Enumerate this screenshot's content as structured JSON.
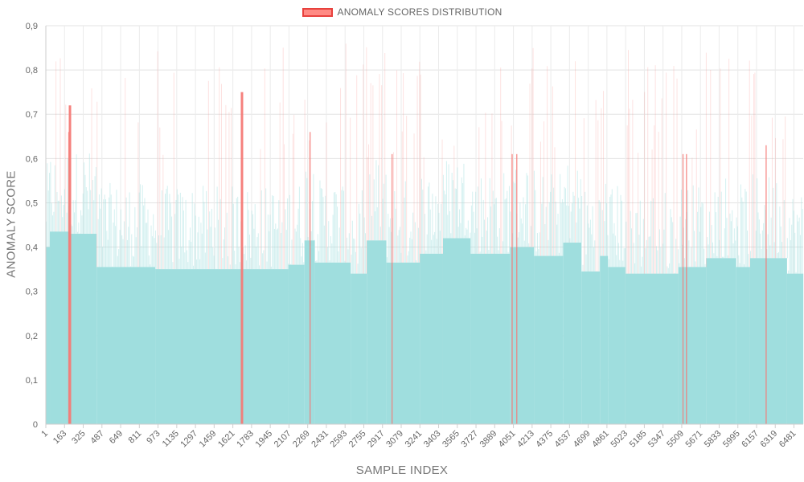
{
  "chart_data": {
    "type": "bar",
    "legend": {
      "label": "ANOMALY SCORES DISTRIBUTION",
      "position": "top-center"
    },
    "xlabel": "SAMPLE INDEX",
    "ylabel": "ANOMALY SCORE",
    "ylim": [
      0,
      0.9
    ],
    "y_ticks": [
      "0",
      "0,1",
      "0,2",
      "0,3",
      "0,4",
      "0,5",
      "0,6",
      "0,7",
      "0,8",
      "0,9"
    ],
    "x_ticks": [
      "1",
      "163",
      "325",
      "487",
      "649",
      "811",
      "973",
      "1135",
      "1297",
      "1459",
      "1621",
      "1783",
      "1945",
      "2107",
      "2269",
      "2431",
      "2593",
      "2755",
      "2917",
      "3079",
      "3241",
      "3403",
      "3565",
      "3727",
      "3889",
      "4051",
      "4213",
      "4375",
      "4537",
      "4699",
      "4861",
      "5023",
      "5185",
      "5347",
      "5509",
      "5671",
      "5833",
      "5995",
      "6157",
      "6319",
      "6481"
    ],
    "x_range": [
      1,
      6561
    ],
    "grid": true,
    "normal_color": "#9fdede",
    "anomaly_color": "#f47a76",
    "anomaly_threshold": 0.6,
    "baseline_segments": [
      {
        "from": 1,
        "to": 35,
        "value": 0.4
      },
      {
        "from": 36,
        "to": 210,
        "value": 0.435
      },
      {
        "from": 211,
        "to": 440,
        "value": 0.43
      },
      {
        "from": 441,
        "to": 950,
        "value": 0.355
      },
      {
        "from": 951,
        "to": 2100,
        "value": 0.35
      },
      {
        "from": 2101,
        "to": 2240,
        "value": 0.36
      },
      {
        "from": 2241,
        "to": 2330,
        "value": 0.415
      },
      {
        "from": 2331,
        "to": 2640,
        "value": 0.365
      },
      {
        "from": 2641,
        "to": 2780,
        "value": 0.34
      },
      {
        "from": 2781,
        "to": 2950,
        "value": 0.415
      },
      {
        "from": 2951,
        "to": 3240,
        "value": 0.365
      },
      {
        "from": 3241,
        "to": 3440,
        "value": 0.385
      },
      {
        "from": 3441,
        "to": 3680,
        "value": 0.42
      },
      {
        "from": 3681,
        "to": 4020,
        "value": 0.385
      },
      {
        "from": 4021,
        "to": 4230,
        "value": 0.4
      },
      {
        "from": 4231,
        "to": 4480,
        "value": 0.38
      },
      {
        "from": 4481,
        "to": 4640,
        "value": 0.41
      },
      {
        "from": 4641,
        "to": 4800,
        "value": 0.345
      },
      {
        "from": 4801,
        "to": 4870,
        "value": 0.38
      },
      {
        "from": 4871,
        "to": 5020,
        "value": 0.355
      },
      {
        "from": 5021,
        "to": 5480,
        "value": 0.34
      },
      {
        "from": 5481,
        "to": 5720,
        "value": 0.355
      },
      {
        "from": 5721,
        "to": 5980,
        "value": 0.375
      },
      {
        "from": 5981,
        "to": 6100,
        "value": 0.355
      },
      {
        "from": 6101,
        "to": 6420,
        "value": 0.375
      },
      {
        "from": 6421,
        "to": 6561,
        "value": 0.34
      }
    ],
    "highlighted_anomalies": [
      {
        "index": 210,
        "value": 0.72
      },
      {
        "index": 200,
        "value": 0.66
      },
      {
        "index": 2290,
        "value": 0.66
      },
      {
        "index": 3000,
        "value": 0.61
      },
      {
        "index": 4040,
        "value": 0.61
      },
      {
        "index": 4080,
        "value": 0.61
      },
      {
        "index": 5520,
        "value": 0.61
      },
      {
        "index": 5550,
        "value": 0.61
      },
      {
        "index": 6240,
        "value": 0.63
      },
      {
        "index": 1700,
        "value": 0.75
      }
    ]
  }
}
